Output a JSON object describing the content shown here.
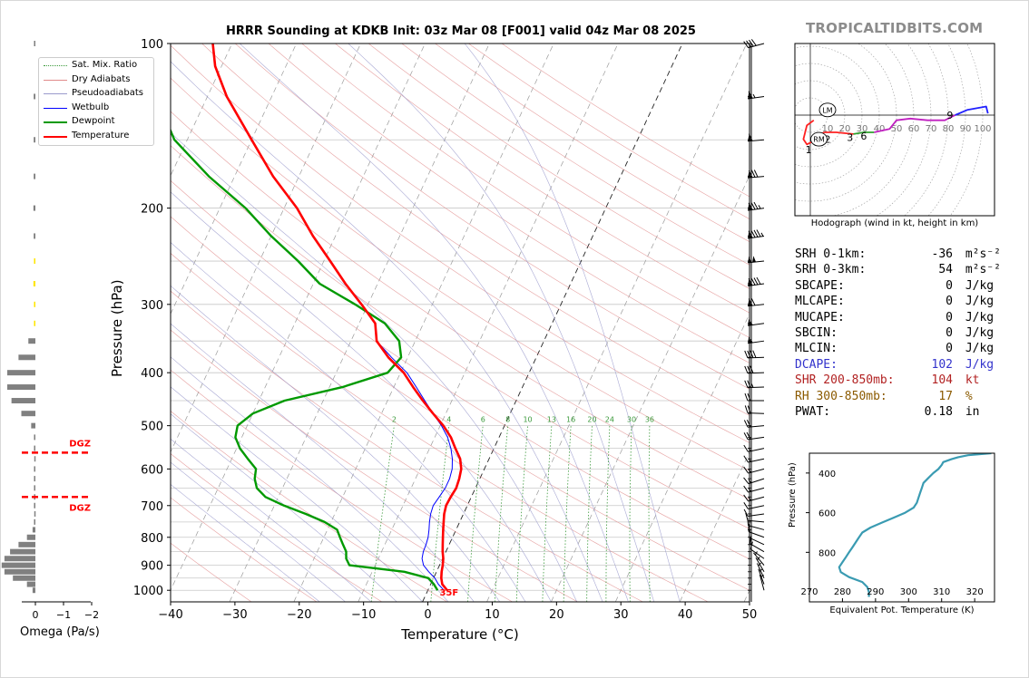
{
  "brand": "TROPICALTIDBITS.COM",
  "title": "HRRR Sounding at KDKB Init: 03z Mar 08 [F001] valid 04z Mar 08 2025",
  "chart_data": [
    {
      "type": "line",
      "name": "skewt",
      "xlabel": "Temperature (°C)",
      "ylabel": "Pressure (hPa)",
      "xlim": [
        -40,
        50
      ],
      "ylim": [
        1050,
        100
      ],
      "y_scale": "log",
      "x_ticks": [
        "−40",
        "−30",
        "−20",
        "−10",
        "0",
        "10",
        "20",
        "30",
        "40",
        "50"
      ],
      "x_tick_values": [
        -40,
        -30,
        -20,
        -10,
        0,
        10,
        20,
        30,
        40,
        50
      ],
      "y_ticks": [
        "100",
        "200",
        "300",
        "400",
        "500",
        "600",
        "700",
        "800",
        "900",
        "1000"
      ],
      "y_tick_values": [
        100,
        200,
        300,
        400,
        500,
        600,
        700,
        800,
        900,
        1000
      ],
      "grid": true,
      "legend": [
        "Sat. Mix. Ratio",
        "Dry Adiabats",
        "Pseudoadiabats",
        "Wetbulb",
        "Dewpoint",
        "Temperature"
      ],
      "legend_position": "top-left",
      "colors": {
        "temperature": "#ff0000",
        "dewpoint": "#009900",
        "wetbulb": "#0000ff",
        "dry": "#e08a8a",
        "moist": "#8c8cdc",
        "mix": "#3c9a3c",
        "iso": "#777777"
      },
      "mixing_ratio_labels": [
        "2",
        "4",
        "6",
        "8",
        "10",
        "13",
        "16",
        "20",
        "24",
        "30",
        "36"
      ],
      "mixing_ratio_values": [
        2,
        4,
        6,
        8,
        10,
        13,
        16,
        20,
        24,
        30,
        36
      ],
      "surface_label": "35F",
      "temperature": [
        [
          1000,
          3
        ],
        [
          975,
          1.8
        ],
        [
          950,
          1.2
        ],
        [
          925,
          0.8
        ],
        [
          900,
          0.5
        ],
        [
          875,
          0.1
        ],
        [
          850,
          -0.5
        ],
        [
          825,
          -1
        ],
        [
          800,
          -1.5
        ],
        [
          775,
          -2
        ],
        [
          750,
          -2.5
        ],
        [
          725,
          -3
        ],
        [
          700,
          -3.3
        ],
        [
          675,
          -3.2
        ],
        [
          650,
          -3
        ],
        [
          625,
          -3.2
        ],
        [
          600,
          -3.6
        ],
        [
          575,
          -4.5
        ],
        [
          550,
          -6
        ],
        [
          525,
          -7.5
        ],
        [
          500,
          -9.5
        ],
        [
          475,
          -12
        ],
        [
          450,
          -14.5
        ],
        [
          425,
          -17
        ],
        [
          400,
          -19.5
        ],
        [
          375,
          -23
        ],
        [
          350,
          -26
        ],
        [
          325,
          -27.5
        ],
        [
          300,
          -31
        ],
        [
          275,
          -35
        ],
        [
          250,
          -39
        ],
        [
          225,
          -43.5
        ],
        [
          200,
          -48
        ],
        [
          175,
          -54
        ],
        [
          150,
          -60
        ],
        [
          125,
          -67
        ],
        [
          110,
          -71
        ],
        [
          100,
          -73
        ]
      ],
      "dewpoint": [
        [
          1000,
          1.5
        ],
        [
          975,
          0.5
        ],
        [
          950,
          -0.8
        ],
        [
          925,
          -5
        ],
        [
          900,
          -14
        ],
        [
          875,
          -15
        ],
        [
          850,
          -15.5
        ],
        [
          825,
          -16.5
        ],
        [
          800,
          -17.5
        ],
        [
          775,
          -18.5
        ],
        [
          750,
          -21
        ],
        [
          725,
          -24.5
        ],
        [
          700,
          -28.5
        ],
        [
          675,
          -32
        ],
        [
          650,
          -34
        ],
        [
          625,
          -35
        ],
        [
          600,
          -35.5
        ],
        [
          575,
          -37.5
        ],
        [
          550,
          -39.5
        ],
        [
          525,
          -41
        ],
        [
          500,
          -41.5
        ],
        [
          475,
          -40
        ],
        [
          450,
          -36
        ],
        [
          425,
          -28
        ],
        [
          400,
          -22
        ],
        [
          375,
          -21
        ],
        [
          350,
          -22.5
        ],
        [
          325,
          -26
        ],
        [
          300,
          -32
        ],
        [
          275,
          -39
        ],
        [
          250,
          -44
        ],
        [
          225,
          -50
        ],
        [
          200,
          -56
        ],
        [
          175,
          -64
        ],
        [
          150,
          -72
        ],
        [
          125,
          -78
        ],
        [
          110,
          -82
        ],
        [
          100,
          -85
        ]
      ],
      "wetbulb": [
        [
          1000,
          2.5
        ],
        [
          975,
          1.2
        ],
        [
          950,
          0.2
        ],
        [
          925,
          -1.2
        ],
        [
          900,
          -2.5
        ],
        [
          875,
          -3.2
        ],
        [
          850,
          -3.5
        ],
        [
          825,
          -3.6
        ],
        [
          800,
          -3.8
        ],
        [
          775,
          -4.2
        ],
        [
          750,
          -4.7
        ],
        [
          725,
          -5.1
        ],
        [
          700,
          -5.3
        ],
        [
          675,
          -5
        ],
        [
          650,
          -4.7
        ],
        [
          625,
          -4.7
        ],
        [
          600,
          -5
        ],
        [
          575,
          -5.7
        ],
        [
          550,
          -6.7
        ],
        [
          525,
          -8
        ],
        [
          500,
          -9.8
        ],
        [
          475,
          -12
        ],
        [
          450,
          -14.2
        ],
        [
          425,
          -16.5
        ],
        [
          400,
          -19
        ],
        [
          375,
          -22.5
        ],
        [
          350,
          -26
        ],
        [
          325,
          -27.5
        ],
        [
          300,
          -31
        ],
        [
          275,
          -35
        ],
        [
          250,
          -39
        ],
        [
          225,
          -43.5
        ],
        [
          200,
          -48
        ],
        [
          175,
          -54
        ],
        [
          150,
          -60
        ],
        [
          125,
          -67
        ],
        [
          110,
          -71
        ],
        [
          100,
          -73
        ]
      ]
    },
    {
      "type": "line",
      "name": "omega",
      "xlabel": "Omega (Pa/s)",
      "x_ticks": [
        "0",
        "−1",
        "−2"
      ],
      "x_tick_values": [
        0,
        -1,
        -2
      ],
      "dgz_label": "DGZ",
      "dgz_top_hpa": 560,
      "dgz_bottom_hpa": 675,
      "values": [
        [
          100,
          -0.05
        ],
        [
          125,
          -0.06
        ],
        [
          150,
          -0.06
        ],
        [
          175,
          -0.06
        ],
        [
          200,
          -0.07
        ],
        [
          225,
          -0.06
        ],
        [
          250,
          -0.05
        ],
        [
          275,
          -0.07
        ],
        [
          300,
          -0.05
        ],
        [
          325,
          -0.05
        ],
        [
          350,
          -0.25
        ],
        [
          375,
          -0.6
        ],
        [
          400,
          -1.0
        ],
        [
          425,
          -1.0
        ],
        [
          450,
          -0.85
        ],
        [
          475,
          -0.5
        ],
        [
          500,
          -0.15
        ],
        [
          525,
          -0.05
        ],
        [
          550,
          -0.05
        ],
        [
          575,
          -0.04
        ],
        [
          600,
          -0.05
        ],
        [
          625,
          -0.05
        ],
        [
          650,
          -0.05
        ],
        [
          675,
          -0.05
        ],
        [
          700,
          -0.05
        ],
        [
          725,
          -0.04
        ],
        [
          750,
          -0.05
        ],
        [
          775,
          -0.1
        ],
        [
          800,
          -0.3
        ],
        [
          825,
          -0.6
        ],
        [
          850,
          -0.9
        ],
        [
          875,
          -1.1
        ],
        [
          900,
          -1.2
        ],
        [
          925,
          -1.1
        ],
        [
          950,
          -0.8
        ],
        [
          975,
          -0.3
        ],
        [
          1000,
          -0.1
        ]
      ],
      "dgz_color": "#ff0000",
      "dgz_values_color": "#ffe600",
      "bar_color": "#808080"
    },
    {
      "type": "line",
      "name": "hodograph",
      "caption": "Hodograph (wind in kt, height in km)",
      "ring_labels": [
        "10",
        "20",
        "30",
        "40",
        "50",
        "60",
        "70",
        "80",
        "90",
        "100"
      ],
      "ring_values": [
        10,
        20,
        30,
        40,
        50,
        60,
        70,
        80,
        90,
        100
      ],
      "height_labels": [
        "1",
        "2",
        "3",
        "6",
        "9"
      ],
      "lm_label": "LM",
      "rm_label": "RM",
      "lm": [
        10,
        3
      ],
      "rm": [
        5,
        -14
      ],
      "segments": [
        {
          "color": "#ff2020",
          "points": [
            [
              2,
              -3
            ],
            [
              -2,
              -6
            ],
            [
              -3,
              -10
            ],
            [
              -4,
              -14
            ],
            [
              -2,
              -17
            ],
            [
              2,
              -15
            ],
            [
              5,
              -12
            ],
            [
              8,
              -10
            ]
          ]
        },
        {
          "color": "#ff2020",
          "points": [
            [
              8,
              -10
            ],
            [
              15,
              -10
            ],
            [
              25,
              -11
            ]
          ]
        },
        {
          "color": "#2ea02e",
          "points": [
            [
              25,
              -11
            ],
            [
              31,
              -10
            ],
            [
              37,
              -10
            ]
          ]
        },
        {
          "color": "#c020c0",
          "points": [
            [
              37,
              -10
            ],
            [
              46,
              -8
            ],
            [
              50,
              -3
            ],
            [
              58,
              -2
            ],
            [
              68,
              -3
            ],
            [
              78,
              -3
            ],
            [
              84,
              0
            ]
          ]
        },
        {
          "color": "#2020ff",
          "points": [
            [
              84,
              0
            ],
            [
              91,
              3
            ],
            [
              102,
              5
            ],
            [
              103,
              1
            ]
          ]
        }
      ]
    },
    {
      "type": "line",
      "name": "eqpt",
      "xlabel": "Equivalent Pot. Temperature (K)",
      "ylabel": "Pressure (hPa)",
      "x_ticks": [
        "270",
        "280",
        "290",
        "300",
        "310",
        "320"
      ],
      "x_tick_values": [
        270,
        280,
        290,
        300,
        310,
        320
      ],
      "y_ticks": [
        "400",
        "600",
        "800"
      ],
      "y_tick_values": [
        400,
        600,
        800
      ],
      "xlim": [
        270,
        326
      ],
      "ylim": [
        300,
        1050
      ],
      "color": "#3a9bb2",
      "values": [
        [
          300,
          325
        ],
        [
          310,
          318
        ],
        [
          320,
          315
        ],
        [
          330,
          313
        ],
        [
          345,
          310.5
        ],
        [
          360,
          310
        ],
        [
          380,
          309
        ],
        [
          400,
          307.5
        ],
        [
          425,
          306
        ],
        [
          450,
          304.5
        ],
        [
          475,
          304
        ],
        [
          500,
          303.5
        ],
        [
          525,
          303
        ],
        [
          550,
          302.5
        ],
        [
          575,
          301.5
        ],
        [
          600,
          299
        ],
        [
          625,
          295.5
        ],
        [
          650,
          292
        ],
        [
          675,
          288.5
        ],
        [
          700,
          286
        ],
        [
          725,
          285
        ],
        [
          750,
          284
        ],
        [
          775,
          283
        ],
        [
          800,
          282
        ],
        [
          825,
          281
        ],
        [
          850,
          280
        ],
        [
          875,
          279
        ],
        [
          900,
          279.5
        ],
        [
          925,
          282
        ],
        [
          950,
          286
        ],
        [
          975,
          287.5
        ],
        [
          1000,
          288
        ],
        [
          1025,
          288
        ]
      ]
    }
  ],
  "params": [
    {
      "label": "SRH 0-1km:",
      "value": "-36",
      "unit": "m²s⁻²",
      "color": "#000000"
    },
    {
      "label": "SRH 0-3km:",
      "value": "54",
      "unit": "m²s⁻²",
      "color": "#000000"
    },
    {
      "label": "SBCAPE:",
      "value": "0",
      "unit": "J/kg",
      "color": "#000000"
    },
    {
      "label": "MLCAPE:",
      "value": "0",
      "unit": "J/kg",
      "color": "#000000"
    },
    {
      "label": "MUCAPE:",
      "value": "0",
      "unit": "J/kg",
      "color": "#000000"
    },
    {
      "label": "SBCIN:",
      "value": "0",
      "unit": "J/kg",
      "color": "#000000"
    },
    {
      "label": "MLCIN:",
      "value": "0",
      "unit": "J/kg",
      "color": "#000000"
    },
    {
      "label": "DCAPE:",
      "value": "102",
      "unit": "J/kg",
      "color": "#3333cc"
    },
    {
      "label": "SHR 200-850mb:",
      "value": "104",
      "unit": "kt",
      "color": "#b22222"
    },
    {
      "label": "RH 300-850mb:",
      "value": "17",
      "unit": "%",
      "color": "#8b5a00"
    },
    {
      "label": "PWAT:",
      "value": "0.18",
      "unit": "in",
      "color": "#000000"
    }
  ],
  "barbs": [
    [
      100,
      255,
      40
    ],
    [
      125,
      262,
      65
    ],
    [
      150,
      265,
      60
    ],
    [
      175,
      265,
      80
    ],
    [
      200,
      262,
      85
    ],
    [
      225,
      262,
      95
    ],
    [
      250,
      264,
      100
    ],
    [
      275,
      262,
      90
    ],
    [
      300,
      264,
      70
    ],
    [
      325,
      262,
      55
    ],
    [
      350,
      262,
      55
    ],
    [
      375,
      268,
      40
    ],
    [
      400,
      268,
      30
    ],
    [
      425,
      268,
      25
    ],
    [
      450,
      270,
      20
    ],
    [
      475,
      272,
      20
    ],
    [
      500,
      265,
      20
    ],
    [
      525,
      262,
      18
    ],
    [
      550,
      258,
      15
    ],
    [
      575,
      258,
      15
    ],
    [
      600,
      255,
      15
    ],
    [
      625,
      252,
      15
    ],
    [
      650,
      255,
      15
    ],
    [
      675,
      255,
      15
    ],
    [
      700,
      258,
      12
    ],
    [
      725,
      262,
      12
    ],
    [
      750,
      275,
      12
    ],
    [
      775,
      285,
      10
    ],
    [
      800,
      290,
      10
    ],
    [
      825,
      295,
      10
    ],
    [
      850,
      300,
      8
    ],
    [
      875,
      305,
      8
    ],
    [
      900,
      320,
      5
    ],
    [
      925,
      330,
      5
    ],
    [
      950,
      335,
      5
    ],
    [
      975,
      340,
      5
    ],
    [
      1000,
      345,
      5
    ]
  ]
}
